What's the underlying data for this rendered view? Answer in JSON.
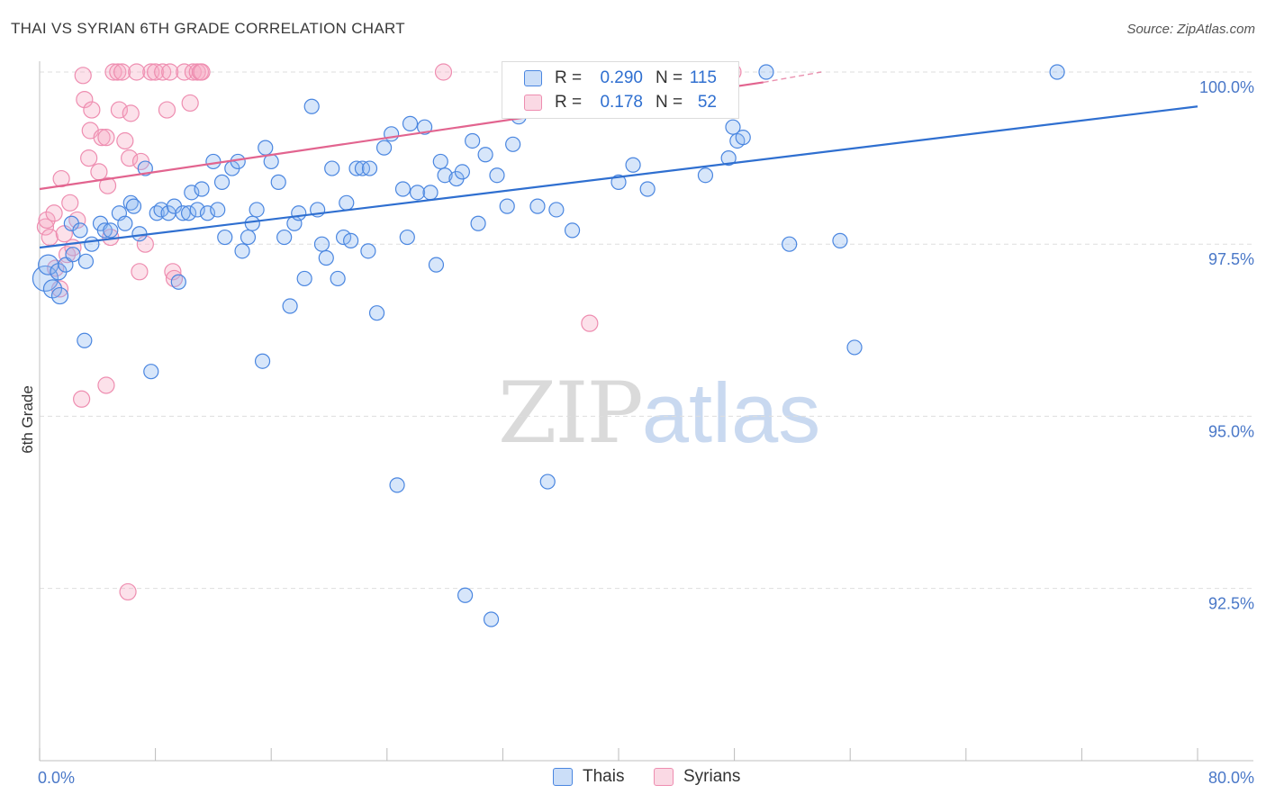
{
  "title": "THAI VS SYRIAN 6TH GRADE CORRELATION CHART",
  "source": "Source: ZipAtlas.com",
  "watermark": {
    "zip": "ZIP",
    "atlas": "atlas"
  },
  "colors": {
    "thai_fill": "rgba(139,182,240,0.35)",
    "thai_stroke": "#4a86e0",
    "thai_line": "#2f6fd0",
    "syrian_fill": "rgba(245,170,195,0.35)",
    "syrian_stroke": "#ee8db0",
    "syrian_line": "#e2648f",
    "tick_text": "#4a78c8",
    "grid": "#dedede"
  },
  "legend": {
    "rows": [
      {
        "r_label": "R =",
        "r_value": "0.290",
        "n_label": "N =",
        "n_value": "115",
        "series": "thai"
      },
      {
        "r_label": "R =",
        "r_value": "0.178",
        "n_label": "N =",
        "n_value": "52",
        "series": "syrian"
      }
    ]
  },
  "bottom_legend": [
    {
      "label": "Thais",
      "series": "thai"
    },
    {
      "label": "Syrians",
      "series": "syrian"
    }
  ],
  "chart_data": {
    "type": "scatter",
    "title": "THAI VS SYRIAN 6TH GRADE CORRELATION CHART",
    "xlabel": "",
    "ylabel": "6th Grade",
    "xlim": [
      0,
      80
    ],
    "ylim": [
      90.3,
      100.45
    ],
    "x_tick_labels": [
      {
        "value": 0,
        "label": "0.0%"
      },
      {
        "value": 80,
        "label": "80.0%"
      }
    ],
    "x_minor_ticks": [
      8,
      16,
      24,
      32,
      40,
      48,
      56,
      64,
      72
    ],
    "y_tick_labels": [
      {
        "value": 100.0,
        "label": "100.0%"
      },
      {
        "value": 97.5,
        "label": "97.5%"
      },
      {
        "value": 95.0,
        "label": "95.0%"
      },
      {
        "value": 92.5,
        "label": "92.5%"
      }
    ],
    "grid": "horizontal dashed",
    "legend_position": "top-center",
    "series": [
      {
        "name": "Thais",
        "key": "thai",
        "trend": {
          "x0": 0,
          "y0": 97.45,
          "x1": 80,
          "y1": 99.5
        },
        "points": [
          [
            0.4,
            97.0,
            14
          ],
          [
            0.6,
            97.2,
            11
          ],
          [
            0.9,
            96.85,
            10
          ],
          [
            1.3,
            97.1,
            9
          ],
          [
            1.8,
            97.2,
            8
          ],
          [
            1.4,
            96.75,
            9
          ],
          [
            2.3,
            97.35,
            8
          ],
          [
            2.2,
            97.8,
            8
          ],
          [
            2.8,
            97.7,
            8
          ],
          [
            3.1,
            96.1,
            8
          ],
          [
            3.2,
            97.25,
            8
          ],
          [
            3.6,
            97.5,
            8
          ],
          [
            4.2,
            97.8,
            8
          ],
          [
            4.5,
            97.7,
            8
          ],
          [
            4.9,
            97.7,
            8
          ],
          [
            5.5,
            97.95,
            8
          ],
          [
            5.9,
            97.8,
            8
          ],
          [
            6.3,
            98.1,
            8
          ],
          [
            6.5,
            98.05,
            8
          ],
          [
            6.9,
            97.65,
            8
          ],
          [
            7.3,
            98.6,
            8
          ],
          [
            7.7,
            95.65,
            8
          ],
          [
            8.1,
            97.95,
            8
          ],
          [
            8.4,
            98.0,
            8
          ],
          [
            8.9,
            97.95,
            8
          ],
          [
            9.3,
            98.05,
            8
          ],
          [
            9.6,
            96.95,
            8
          ],
          [
            9.9,
            97.95,
            8
          ],
          [
            10.3,
            97.95,
            8
          ],
          [
            10.5,
            98.25,
            8
          ],
          [
            10.9,
            98.0,
            8
          ],
          [
            11.2,
            98.3,
            8
          ],
          [
            11.6,
            97.95,
            8
          ],
          [
            12.0,
            98.7,
            8
          ],
          [
            12.3,
            98.0,
            8
          ],
          [
            12.6,
            98.4,
            8
          ],
          [
            12.8,
            97.6,
            8
          ],
          [
            13.3,
            98.6,
            8
          ],
          [
            13.7,
            98.7,
            8
          ],
          [
            14.0,
            97.4,
            8
          ],
          [
            14.4,
            97.6,
            8
          ],
          [
            14.7,
            97.8,
            8
          ],
          [
            15.0,
            98.0,
            8
          ],
          [
            15.4,
            95.8,
            8
          ],
          [
            15.6,
            98.9,
            8
          ],
          [
            16.0,
            98.7,
            8
          ],
          [
            16.5,
            98.4,
            8
          ],
          [
            16.9,
            97.6,
            8
          ],
          [
            17.3,
            96.6,
            8
          ],
          [
            17.6,
            97.8,
            8
          ],
          [
            17.9,
            97.95,
            8
          ],
          [
            18.3,
            97.0,
            8
          ],
          [
            18.8,
            99.5,
            8
          ],
          [
            19.2,
            98.0,
            8
          ],
          [
            19.5,
            97.5,
            8
          ],
          [
            19.8,
            97.3,
            8
          ],
          [
            20.2,
            98.6,
            8
          ],
          [
            20.6,
            97.0,
            8
          ],
          [
            21.0,
            97.6,
            8
          ],
          [
            21.2,
            98.1,
            8
          ],
          [
            21.5,
            97.55,
            8
          ],
          [
            21.9,
            98.6,
            8
          ],
          [
            22.3,
            98.6,
            8
          ],
          [
            22.8,
            98.6,
            8
          ],
          [
            22.7,
            97.4,
            8
          ],
          [
            23.3,
            96.5,
            8
          ],
          [
            23.8,
            98.9,
            8
          ],
          [
            24.3,
            99.1,
            8
          ],
          [
            24.7,
            94.0,
            8
          ],
          [
            25.1,
            98.3,
            8
          ],
          [
            25.4,
            97.6,
            8
          ],
          [
            25.6,
            99.25,
            8
          ],
          [
            26.1,
            98.25,
            8
          ],
          [
            26.6,
            99.2,
            8
          ],
          [
            27.0,
            98.25,
            8
          ],
          [
            27.4,
            97.2,
            8
          ],
          [
            27.7,
            98.7,
            8
          ],
          [
            28.0,
            98.5,
            8
          ],
          [
            28.8,
            98.45,
            8
          ],
          [
            29.2,
            98.55,
            8
          ],
          [
            29.4,
            92.4,
            8
          ],
          [
            29.9,
            99.0,
            8
          ],
          [
            30.3,
            97.8,
            8
          ],
          [
            30.8,
            98.8,
            8
          ],
          [
            31.2,
            92.05,
            8
          ],
          [
            31.6,
            98.5,
            8
          ],
          [
            32.3,
            98.05,
            8
          ],
          [
            32.7,
            98.95,
            8
          ],
          [
            33.1,
            99.35,
            8
          ],
          [
            33.5,
            100.0,
            8
          ],
          [
            33.8,
            99.75,
            8
          ],
          [
            34.4,
            98.05,
            8
          ],
          [
            35.1,
            94.05,
            8
          ],
          [
            35.7,
            98.0,
            8
          ],
          [
            36.8,
            97.7,
            8
          ],
          [
            40.0,
            98.4,
            8
          ],
          [
            41.0,
            98.65,
            8
          ],
          [
            42.0,
            98.3,
            8
          ],
          [
            41.5,
            100.0,
            8
          ],
          [
            44.0,
            100.0,
            8
          ],
          [
            45.3,
            100.0,
            8
          ],
          [
            47.6,
            98.75,
            8
          ],
          [
            47.9,
            99.2,
            8
          ],
          [
            48.2,
            99.0,
            8
          ],
          [
            48.6,
            99.05,
            8
          ],
          [
            50.2,
            100.0,
            8
          ],
          [
            51.8,
            97.5,
            8
          ],
          [
            55.3,
            97.55,
            8
          ],
          [
            56.3,
            96.0,
            8
          ],
          [
            70.3,
            100.0,
            8
          ],
          [
            46.0,
            98.5,
            8
          ]
        ]
      },
      {
        "name": "Syrians",
        "key": "syrian",
        "trend": {
          "x0": 0,
          "y0": 98.3,
          "x1": 50,
          "y1": 99.85,
          "dash_x1": 54,
          "dash_y1": 100.0
        },
        "points": [
          [
            0.4,
            97.75,
            9
          ],
          [
            0.5,
            97.85,
            9
          ],
          [
            0.7,
            97.6,
            9
          ],
          [
            1.0,
            97.95,
            9
          ],
          [
            1.1,
            97.15,
            9
          ],
          [
            1.4,
            96.85,
            9
          ],
          [
            1.5,
            98.45,
            9
          ],
          [
            1.7,
            97.65,
            9
          ],
          [
            1.9,
            97.35,
            9
          ],
          [
            2.1,
            98.1,
            9
          ],
          [
            2.3,
            97.45,
            9
          ],
          [
            2.6,
            97.85,
            9
          ],
          [
            2.9,
            95.25,
            9
          ],
          [
            3.0,
            99.95,
            9
          ],
          [
            3.1,
            99.6,
            9
          ],
          [
            3.4,
            98.75,
            9
          ],
          [
            3.5,
            99.15,
            9
          ],
          [
            3.6,
            99.45,
            9
          ],
          [
            4.1,
            98.55,
            9
          ],
          [
            4.3,
            99.05,
            9
          ],
          [
            4.6,
            99.05,
            9
          ],
          [
            4.6,
            95.45,
            9
          ],
          [
            4.7,
            98.35,
            9
          ],
          [
            4.9,
            97.6,
            9
          ],
          [
            5.1,
            100.0,
            9
          ],
          [
            5.4,
            100.0,
            9
          ],
          [
            5.5,
            99.45,
            9
          ],
          [
            5.7,
            100.0,
            9
          ],
          [
            5.9,
            99.0,
            9
          ],
          [
            6.1,
            92.45,
            9
          ],
          [
            6.2,
            98.75,
            9
          ],
          [
            6.3,
            99.4,
            9
          ],
          [
            6.7,
            100.0,
            9
          ],
          [
            6.9,
            97.1,
            9
          ],
          [
            7.0,
            98.7,
            9
          ],
          [
            7.3,
            97.5,
            9
          ],
          [
            7.7,
            100.0,
            9
          ],
          [
            8.0,
            100.0,
            9
          ],
          [
            8.5,
            100.0,
            9
          ],
          [
            8.8,
            99.45,
            9
          ],
          [
            9.0,
            100.0,
            9
          ],
          [
            9.2,
            97.1,
            9
          ],
          [
            9.3,
            97.0,
            9
          ],
          [
            10.0,
            100.0,
            9
          ],
          [
            10.4,
            99.55,
            9
          ],
          [
            10.6,
            100.0,
            9
          ],
          [
            10.9,
            100.0,
            9
          ],
          [
            11.1,
            100.0,
            9
          ],
          [
            11.2,
            100.0,
            9
          ],
          [
            27.9,
            100.0,
            9
          ],
          [
            38.0,
            96.35,
            9
          ],
          [
            47.9,
            100.0,
            9
          ]
        ]
      }
    ]
  }
}
